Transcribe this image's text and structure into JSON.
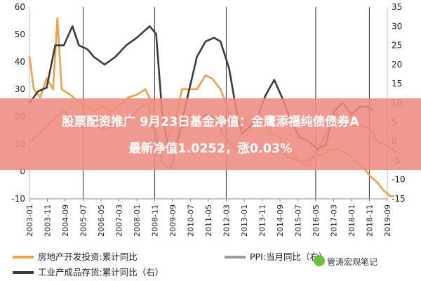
{
  "chart_data": {
    "type": "line",
    "left_axis": {
      "ticks": [
        -10,
        0,
        10,
        20,
        30,
        40,
        50,
        60
      ],
      "ylim": [
        -10,
        60
      ]
    },
    "right_axis": {
      "ticks": [
        -15,
        -10,
        -5,
        0,
        5,
        10,
        15,
        20,
        25,
        30,
        35
      ],
      "ylim": [
        -15,
        35
      ]
    },
    "x_ticks": [
      "2003-01",
      "2003-11",
      "2004-09",
      "2005-07",
      "2006-05",
      "2007-03",
      "2008-01",
      "2008-11",
      "2009-09",
      "2010-07",
      "2011-05",
      "2012-03",
      "2013-01",
      "2013-11",
      "2014-09",
      "2015-07",
      "2016-05",
      "2017-03",
      "2018-01",
      "2018-11",
      "2019-09"
    ],
    "recession_lines": [
      "2005-07",
      "2008-11",
      "2012-03",
      "2016-05",
      "2018-11"
    ],
    "series": [
      {
        "name": "房地产开发投资:累计同比",
        "axis": "left",
        "color": "#f0a04a",
        "points": [
          [
            2003.0,
            42
          ],
          [
            2003.2,
            30
          ],
          [
            2003.5,
            27
          ],
          [
            2003.8,
            34
          ],
          [
            2004.1,
            30
          ],
          [
            2004.3,
            56
          ],
          [
            2004.5,
            30
          ],
          [
            2004.9,
            28
          ],
          [
            2005.2,
            26
          ],
          [
            2005.6,
            24
          ],
          [
            2006.0,
            22
          ],
          [
            2006.4,
            24
          ],
          [
            2006.8,
            22
          ],
          [
            2007.2,
            24
          ],
          [
            2007.6,
            27
          ],
          [
            2008.0,
            28
          ],
          [
            2008.4,
            30
          ],
          [
            2008.7,
            25
          ],
          [
            2008.9,
            15
          ],
          [
            2009.1,
            6
          ],
          [
            2009.4,
            12
          ],
          [
            2009.8,
            18
          ],
          [
            2010.1,
            30
          ],
          [
            2010.5,
            30
          ],
          [
            2010.8,
            30
          ],
          [
            2011.2,
            35
          ],
          [
            2011.5,
            34
          ],
          [
            2011.9,
            30
          ],
          [
            2012.3,
            22
          ],
          [
            2012.6,
            17
          ],
          [
            2012.9,
            16
          ],
          [
            2013.2,
            20
          ],
          [
            2013.5,
            19
          ],
          [
            2013.9,
            18
          ],
          [
            2014.3,
            14
          ],
          [
            2014.7,
            12
          ],
          [
            2015.0,
            9
          ],
          [
            2015.4,
            5
          ],
          [
            2015.7,
            3
          ],
          [
            2016.0,
            2
          ],
          [
            2016.3,
            6
          ],
          [
            2016.7,
            6
          ],
          [
            2017.0,
            8
          ],
          [
            2017.4,
            8
          ],
          [
            2017.7,
            7
          ],
          [
            2018.0,
            5
          ],
          [
            2018.3,
            3
          ],
          [
            2018.6,
            1
          ],
          [
            2018.9,
            -2
          ],
          [
            2019.2,
            -4
          ],
          [
            2019.5,
            -7
          ],
          [
            2019.8,
            -9
          ],
          [
            2020.0,
            -9
          ]
        ]
      },
      {
        "name": "PPI:当月同比（右）",
        "axis": "right",
        "color": "#9b9b9b",
        "points": [
          [
            2003.0,
            0
          ],
          [
            2003.5,
            2
          ],
          [
            2004.0,
            5
          ],
          [
            2004.6,
            8
          ],
          [
            2005.0,
            6
          ],
          [
            2005.5,
            5
          ],
          [
            2006.0,
            4
          ],
          [
            2006.5,
            3
          ],
          [
            2007.0,
            4
          ],
          [
            2007.5,
            5
          ],
          [
            2008.0,
            8
          ],
          [
            2008.5,
            10
          ],
          [
            2008.8,
            3
          ],
          [
            2009.2,
            -6
          ],
          [
            2009.6,
            -7
          ],
          [
            2010.0,
            3
          ],
          [
            2010.4,
            7
          ],
          [
            2010.8,
            6
          ],
          [
            2011.3,
            7
          ],
          [
            2011.7,
            6
          ],
          [
            2012.0,
            2
          ],
          [
            2012.4,
            -1
          ],
          [
            2012.8,
            -3
          ],
          [
            2013.2,
            -2
          ],
          [
            2013.6,
            -2
          ],
          [
            2014.0,
            -2
          ],
          [
            2014.6,
            -1
          ],
          [
            2015.0,
            -4
          ],
          [
            2015.5,
            -5
          ],
          [
            2016.0,
            -5
          ],
          [
            2016.4,
            -3
          ],
          [
            2016.8,
            2
          ],
          [
            2017.2,
            7
          ],
          [
            2017.6,
            6
          ],
          [
            2018.0,
            4
          ],
          [
            2018.5,
            4
          ],
          [
            2018.9,
            3
          ],
          [
            2019.2,
            0
          ],
          [
            2019.6,
            -1
          ],
          [
            2019.9,
            -2
          ],
          [
            2020.1,
            -3
          ]
        ]
      },
      {
        "name": "工业产成品存货:累计同比（右）",
        "axis": "right",
        "color": "#3b3b3b",
        "points": [
          [
            2003.0,
            10
          ],
          [
            2003.4,
            13
          ],
          [
            2003.8,
            14
          ],
          [
            2004.2,
            25
          ],
          [
            2004.6,
            25
          ],
          [
            2005.0,
            30
          ],
          [
            2005.3,
            25
          ],
          [
            2005.7,
            24
          ],
          [
            2006.0,
            22
          ],
          [
            2006.5,
            20
          ],
          [
            2007.0,
            22
          ],
          [
            2007.5,
            25
          ],
          [
            2008.0,
            27
          ],
          [
            2008.6,
            30
          ],
          [
            2008.9,
            28
          ],
          [
            2009.2,
            6
          ],
          [
            2009.5,
            -2
          ],
          [
            2009.9,
            0
          ],
          [
            2010.3,
            10
          ],
          [
            2010.8,
            22
          ],
          [
            2011.2,
            26
          ],
          [
            2011.6,
            27
          ],
          [
            2011.9,
            26
          ],
          [
            2012.3,
            19
          ],
          [
            2012.7,
            6
          ],
          [
            2012.9,
            2
          ],
          [
            2013.3,
            4
          ],
          [
            2013.6,
            6
          ],
          [
            2014.0,
            12
          ],
          [
            2014.4,
            16
          ],
          [
            2014.8,
            11
          ],
          [
            2015.2,
            5
          ],
          [
            2015.6,
            1
          ],
          [
            2016.0,
            0
          ],
          [
            2016.4,
            -2
          ],
          [
            2016.8,
            -1
          ],
          [
            2017.2,
            8
          ],
          [
            2017.6,
            10
          ],
          [
            2018.0,
            7
          ],
          [
            2018.4,
            9
          ],
          [
            2018.8,
            9
          ],
          [
            2019.0,
            8
          ]
        ]
      }
    ],
    "dotted_extension": {
      "axis": "right",
      "color": "#e04040",
      "points": [
        [
          2019.0,
          1
        ],
        [
          2019.3,
          0
        ],
        [
          2019.6,
          -1
        ],
        [
          2019.9,
          -2
        ]
      ]
    },
    "legend_placement": "bottom"
  },
  "legend": [
    {
      "label": "房地产开发投资:累计同比",
      "color": "#f0a04a"
    },
    {
      "label": "PPI:当月同比（右）",
      "color": "#9b9b9b"
    },
    {
      "label": "工业产成品存货:累计同比（右）",
      "color": "#3b3b3b"
    }
  ],
  "banner": {
    "line1": "股票配资推广 9月23日基金净值：金鹰添福纯债债券A",
    "line2": "最新净值1.0252，涨0.03%"
  },
  "watermark": {
    "text": "管涛宏观笔记",
    "icon": "wechat-icon"
  }
}
